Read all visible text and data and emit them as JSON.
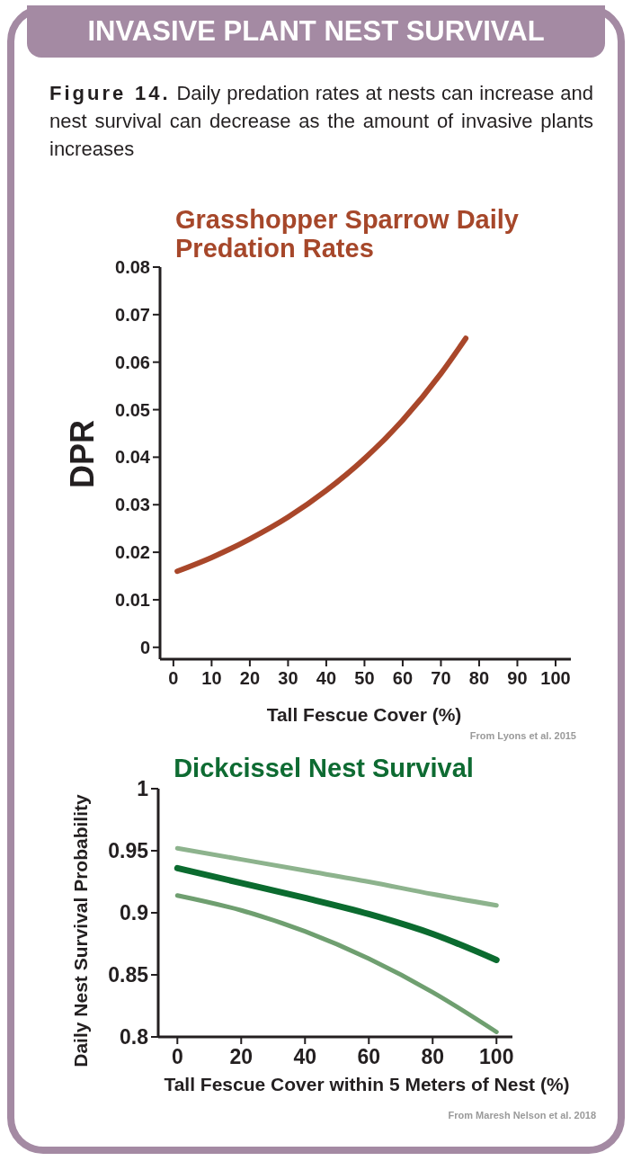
{
  "chart_data": [
    {
      "type": "line",
      "title": "Grasshopper Sparrow Daily Predation Rates",
      "xlabel": "Tall Fescue Cover (%)",
      "ylabel": "DPR",
      "annotations": [
        "INVASIVE PLANT NEST SURVIVAL",
        "Figure 14.",
        "Daily predation rates at nests can increase and nest survival can decrease as the amount of invasive plants increases",
        "From Lyons et al. 2015"
      ],
      "series": [
        {
          "color": "#a9472a",
          "x": [
            1,
            10,
            20,
            30,
            40,
            50,
            60,
            70,
            76.5
          ],
          "values": [
            0.016,
            0.0189,
            0.0228,
            0.0274,
            0.033,
            0.0397,
            0.0478,
            0.0576,
            0.065
          ]
        }
      ],
      "xlim": [
        -3.5,
        104
      ],
      "xticks": [
        0,
        10,
        20,
        30,
        40,
        50,
        60,
        70,
        80,
        90,
        100
      ],
      "ylim": [
        -0.0025,
        0.08
      ],
      "yticks": [
        0,
        0.01,
        0.02,
        0.03,
        0.04,
        0.05,
        0.06,
        0.07,
        0.08
      ],
      "grid": false,
      "legend": false
    },
    {
      "type": "line",
      "title": "Dickcissel Nest Survival",
      "xlabel": "Tall Fescue Cover within 5 Meters of Nest (%)",
      "ylabel": "Daily Nest Survival Probability",
      "annotations": [
        "From Maresh Nelson et al. 2018"
      ],
      "x": [
        0,
        20,
        40,
        60,
        80,
        100
      ],
      "series": [
        {
          "color": "#8db38d",
          "values": [
            0.952,
            0.943,
            0.934,
            0.925,
            0.915,
            0.906
          ]
        },
        {
          "color": "#0b6b2f",
          "values": [
            0.936,
            0.924,
            0.912,
            0.899,
            0.883,
            0.862
          ]
        },
        {
          "color": "#6f9f70",
          "values": [
            0.914,
            0.902,
            0.885,
            0.863,
            0.836,
            0.804
          ]
        }
      ],
      "xlim": [
        -6,
        105
      ],
      "xticks": [
        0,
        20,
        40,
        60,
        80,
        100
      ],
      "ylim": [
        0.8,
        1
      ],
      "yticks": [
        0.8,
        0.85,
        0.9,
        0.95,
        1
      ],
      "grid": false,
      "legend": false
    }
  ]
}
